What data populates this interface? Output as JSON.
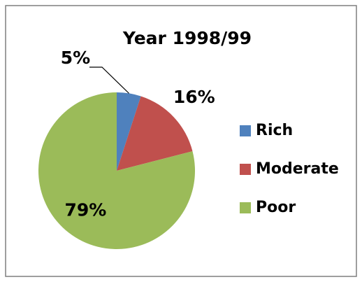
{
  "chart_data": {
    "type": "pie",
    "title": "Year 1998/99",
    "categories": [
      "Rich",
      "Moderate",
      "Poor"
    ],
    "values": [
      5,
      16,
      79
    ],
    "value_labels": [
      "5%",
      "16%",
      "79%"
    ],
    "colors": [
      "#4f81bd",
      "#c0504d",
      "#9bbb59"
    ],
    "legend": "right"
  }
}
